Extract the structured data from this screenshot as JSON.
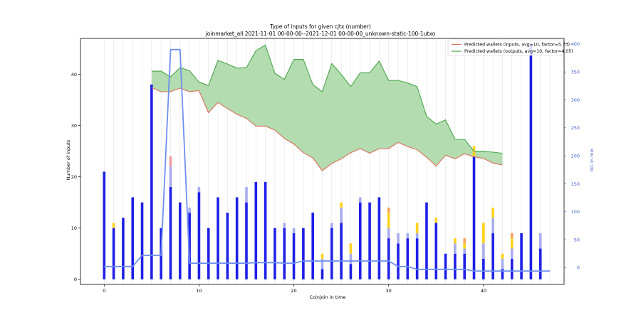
{
  "chart_data": {
    "type": "bar",
    "title": "Type of inputs for given cjtx (number)",
    "subtitle": "joinmarket_all 2021-11-01 00-00-00--2021-12-01 00-00-00_unknown-static-100-1utxo",
    "xlabel": "Coinjoin in time",
    "ylabel": "Number of inputs",
    "ylabel_right": "btc in mix",
    "xlim": [
      -2.5,
      48.5
    ],
    "ylim": [
      -1,
      47
    ],
    "ylim_right": [
      -30,
      410
    ],
    "xticks": [
      0,
      10,
      20,
      30,
      40
    ],
    "yticks": [
      0,
      10,
      20,
      30,
      40
    ],
    "yticks_right": [
      0,
      50,
      100,
      150,
      200,
      250,
      300,
      350,
      400
    ],
    "grid": "vertical",
    "legend_position": "top-right",
    "colors": {
      "bar_main": "#1f1fe6",
      "bar_light": "#a8acee",
      "bar_yellow": "#ffd21e",
      "bar_orange": "#f5a45a",
      "bar_red": "#f0a0a0",
      "btc_line": "#6e8ff0",
      "wallet_inputs_line": "#d9705a",
      "wallet_outputs_line": "#4ca64c",
      "wallet_fill": "#b3dcb0"
    },
    "x": [
      0,
      1,
      2,
      3,
      4,
      5,
      6,
      7,
      8,
      9,
      10,
      11,
      12,
      13,
      14,
      15,
      16,
      17,
      18,
      19,
      20,
      21,
      22,
      23,
      24,
      25,
      26,
      27,
      28,
      29,
      30,
      31,
      32,
      33,
      34,
      35,
      36,
      37,
      38,
      39,
      40,
      41,
      42,
      43,
      44,
      45,
      46,
      47
    ],
    "series": [
      {
        "name": "",
        "key": "main",
        "values": [
          21,
          10,
          12,
          16,
          15,
          38,
          10,
          18,
          15,
          13,
          17,
          10,
          16,
          13,
          16,
          15,
          19,
          19,
          10,
          10,
          9,
          10,
          13,
          2,
          10,
          11,
          3,
          15,
          15,
          16,
          8,
          7,
          8,
          8,
          15,
          11,
          5,
          5,
          5,
          24,
          4,
          9,
          2,
          4,
          9,
          46,
          6,
          0
        ]
      },
      {
        "name": "",
        "key": "light",
        "values": [
          0,
          0,
          0,
          0,
          0,
          0,
          0,
          4,
          0,
          1,
          1,
          0,
          0,
          0,
          0,
          3,
          0,
          0,
          0,
          1,
          1,
          0,
          0,
          2,
          1,
          3,
          2,
          1,
          0,
          0,
          2,
          2,
          1,
          1,
          0,
          0,
          0,
          2,
          1,
          0,
          3,
          3,
          2,
          2,
          0,
          0,
          3,
          0
        ]
      },
      {
        "name": "",
        "key": "yellow",
        "values": [
          0,
          1,
          0,
          0,
          0,
          0,
          0,
          0,
          0,
          0,
          0,
          0,
          0,
          0,
          0,
          0,
          0,
          0,
          0,
          0,
          0,
          0,
          0,
          1,
          0,
          1,
          2,
          0,
          0,
          0,
          3,
          0,
          0,
          2,
          0,
          1,
          0,
          1,
          1,
          2,
          4,
          2,
          1,
          2,
          0,
          0,
          0,
          0
        ]
      },
      {
        "name": "",
        "key": "orange",
        "values": [
          0,
          0,
          0,
          0,
          0,
          0,
          0,
          0,
          0,
          0,
          0,
          0,
          0,
          0,
          0,
          0,
          0,
          0,
          0,
          0,
          0,
          0,
          0,
          0,
          0,
          0,
          0,
          0,
          0,
          0,
          1,
          0,
          0,
          0,
          0,
          0,
          0,
          0,
          1,
          0,
          0,
          0,
          0,
          1,
          0,
          0,
          0,
          0
        ]
      },
      {
        "name": "",
        "key": "red",
        "values": [
          0,
          0,
          0,
          0,
          0,
          0,
          0,
          2,
          0,
          0,
          0,
          0,
          0,
          0,
          0,
          0,
          0,
          0,
          0,
          0,
          0,
          0,
          0,
          0,
          0,
          0,
          0,
          0,
          0,
          0,
          0,
          0,
          0,
          0,
          0,
          0,
          0,
          0,
          0,
          0,
          0,
          0,
          0,
          0,
          0,
          0,
          0,
          0
        ]
      }
    ],
    "btc_in_mix": {
      "name": "",
      "x": [
        0,
        1,
        2,
        3,
        4,
        5,
        6,
        7,
        8,
        9,
        10,
        11,
        12,
        13,
        14,
        15,
        16,
        17,
        18,
        19,
        20,
        21,
        22,
        23,
        24,
        25,
        26,
        27,
        28,
        29,
        30,
        31,
        32,
        33,
        34,
        35,
        36,
        37,
        38,
        39,
        40,
        41,
        42,
        43,
        44,
        45,
        46,
        47
      ],
      "values": [
        2,
        2,
        2,
        2,
        22,
        22,
        22,
        390,
        390,
        8,
        8,
        8,
        8,
        8,
        8,
        8,
        9,
        9,
        9,
        8,
        8,
        12,
        12,
        12,
        12,
        12,
        12,
        12,
        12,
        12,
        12,
        2,
        2,
        -3,
        -3,
        -3,
        -3,
        -3,
        -3,
        -6,
        -6,
        -6,
        -6,
        -6,
        -6,
        -6,
        -6,
        -6
      ]
    },
    "wallet_inputs": {
      "name": "Predicted wallets (inputs, avg=10, factor=5.73)",
      "x": [
        5,
        6,
        7,
        8,
        9,
        10,
        11,
        12,
        13,
        14,
        15,
        16,
        17,
        18,
        19,
        20,
        21,
        22,
        23,
        24,
        25,
        26,
        27,
        28,
        29,
        30,
        31,
        32,
        33,
        34,
        35,
        36,
        37,
        38,
        39,
        40,
        41,
        42
      ],
      "values": [
        37.4,
        36.6,
        36.6,
        37.3,
        36.6,
        36.8,
        32.5,
        34.5,
        33.3,
        32.2,
        31.4,
        29.9,
        29.9,
        29.1,
        27.5,
        26.4,
        24.7,
        23.7,
        21.2,
        22.6,
        23.5,
        24.7,
        25.5,
        24.6,
        25.5,
        25.5,
        26.7,
        25.9,
        25.3,
        23.8,
        22.1,
        24.2,
        23.5,
        24.5,
        23.9,
        23.6,
        22.7,
        22.3
      ]
    },
    "wallet_outputs": {
      "name": "Predicted wallets (outputs, avg=10, factor=4.05)",
      "x": [
        5,
        6,
        7,
        8,
        9,
        10,
        11,
        12,
        13,
        14,
        15,
        16,
        17,
        18,
        19,
        20,
        21,
        22,
        23,
        24,
        25,
        26,
        27,
        28,
        29,
        30,
        31,
        32,
        33,
        34,
        35,
        36,
        37,
        38,
        39,
        40,
        41,
        42
      ],
      "values": [
        40.6,
        40.6,
        39.5,
        41.3,
        40.7,
        38.5,
        37.8,
        42.7,
        42.0,
        41.2,
        41.3,
        44.6,
        45.7,
        40.2,
        39.0,
        42.9,
        42.9,
        38.0,
        36.6,
        42.1,
        40.0,
        37.6,
        40.3,
        40.3,
        42.6,
        38.8,
        38.8,
        38.3,
        37.6,
        31.8,
        30.3,
        31.1,
        27.3,
        27.3,
        25.0,
        25.0,
        24.8,
        24.6
      ]
    }
  }
}
